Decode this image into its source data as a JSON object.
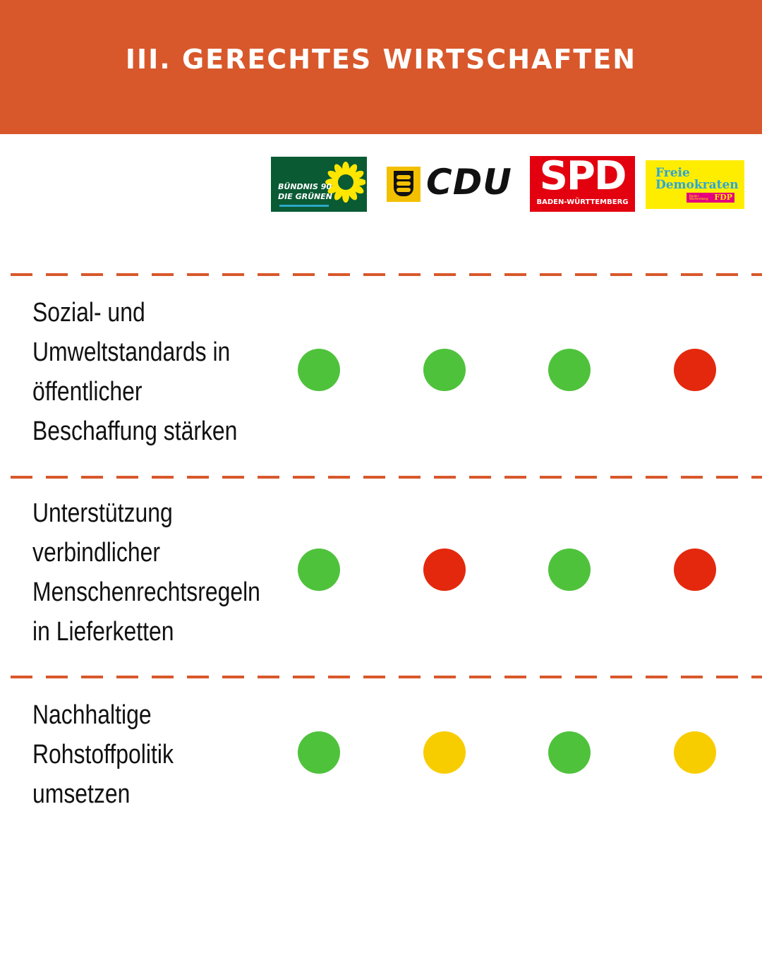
{
  "header": {
    "title": "III. GERECHTES WIRTSCHAFTEN"
  },
  "parties": [
    {
      "id": "gruene",
      "lines": [
        "BÜNDNIS 90",
        "DIE GRÜNEN"
      ],
      "color": "#0a5a34"
    },
    {
      "id": "cdu",
      "text": "CDU",
      "color": "#111111"
    },
    {
      "id": "spd",
      "text": "SPD",
      "subtitle": "BADEN-WÜRTTEMBERG",
      "color": "#e3000f"
    },
    {
      "id": "fdp",
      "lines": [
        "Freie",
        "Demokraten"
      ],
      "badge": "FDP",
      "badge_small": [
        "Baden-",
        "Württemberg"
      ],
      "color": "#ffed00"
    }
  ],
  "colors": {
    "green": "#4fc23c",
    "red": "#e4280d",
    "yellow": "#f8cd00",
    "accent": "#d8582b"
  },
  "rows": [
    {
      "label": "Sozial- und\nUmweltstandards in\nöffentlicher\nBeschaffung stärken",
      "ratings": [
        "green",
        "green",
        "green",
        "red"
      ]
    },
    {
      "label": "Unterstützung\nverbindlicher\nMenschenrechtsregeln\nin Lieferketten",
      "ratings": [
        "green",
        "red",
        "green",
        "red"
      ]
    },
    {
      "label": "Nachhaltige\nRohstoffpolitik\numsetzen",
      "ratings": [
        "green",
        "yellow",
        "green",
        "yellow"
      ]
    }
  ]
}
